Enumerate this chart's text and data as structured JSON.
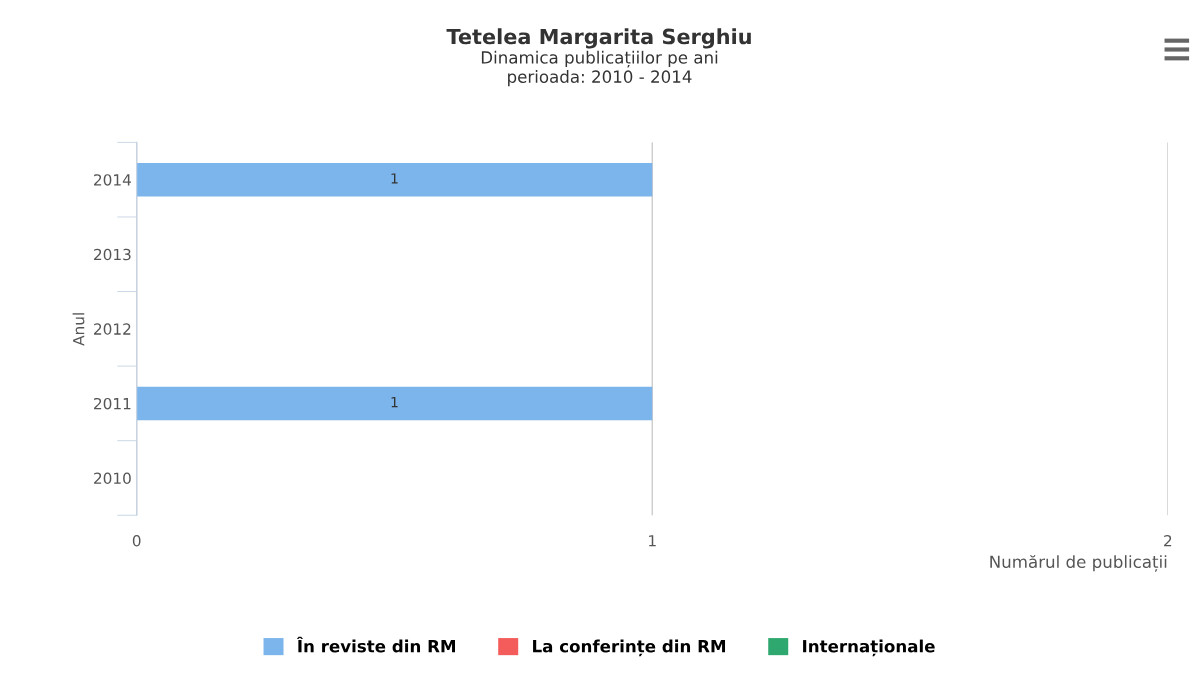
{
  "chart_data": {
    "type": "bar",
    "orientation": "horizontal",
    "title": "Tetelea Margarita Serghiu",
    "subtitle": "Dinamica publicațiilor pe ani\nperioada: 2010 - 2014",
    "xlabel": "Numărul de publicații",
    "ylabel": "Anul",
    "categories": [
      "2014",
      "2013",
      "2012",
      "2011",
      "2010"
    ],
    "series": [
      {
        "name": "În reviste din RM",
        "color": "#7cb5ec",
        "values": [
          1,
          0,
          0,
          1,
          0
        ],
        "value_labels": [
          "1",
          null,
          null,
          "1",
          null
        ]
      },
      {
        "name": "La conferințe din RM",
        "color": "#f45b5b",
        "values": [
          0,
          0,
          0,
          0,
          0
        ]
      },
      {
        "name": "Internaționale",
        "color": "#2fa870",
        "values": [
          0,
          0,
          0,
          0,
          0
        ]
      }
    ],
    "xlim": [
      0,
      2
    ],
    "xticks": [
      0,
      1,
      2
    ],
    "grid": "x",
    "legend": "bottom"
  }
}
